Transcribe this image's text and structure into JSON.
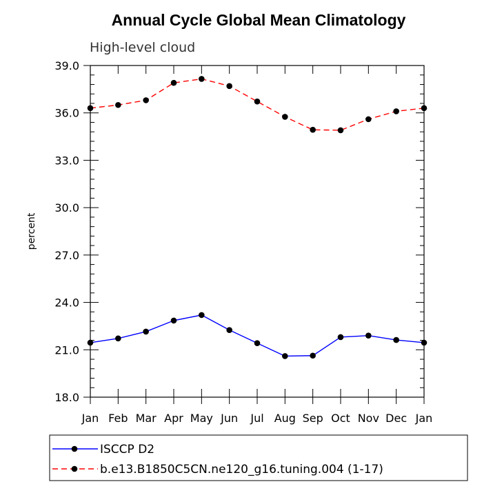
{
  "chart_data": {
    "type": "line",
    "title": "Annual Cycle Global Mean Climatology",
    "subtitle": "High-level cloud",
    "ylabel": "percent",
    "xlabel": "",
    "categories": [
      "Jan",
      "Feb",
      "Mar",
      "Apr",
      "May",
      "Jun",
      "Jul",
      "Aug",
      "Sep",
      "Oct",
      "Nov",
      "Dec",
      "Jan"
    ],
    "ylim": [
      18.0,
      39.0
    ],
    "yticks": [
      "18.0",
      "21.0",
      "24.0",
      "27.0",
      "30.0",
      "33.0",
      "36.0",
      "39.0"
    ],
    "grid": false,
    "legend_position": "bottom",
    "series": [
      {
        "name": "ISCCP D2",
        "color": "#0000ff",
        "line_style": "solid",
        "marker": "filled-circle",
        "values": [
          21.45,
          21.72,
          22.15,
          22.85,
          23.2,
          22.25,
          21.42,
          20.6,
          20.63,
          21.8,
          21.9,
          21.62,
          21.45
        ]
      },
      {
        "name": "b.e13.B1850C5CN.ne120_g16.tuning.004 (1-17)",
        "color": "#ff0000",
        "line_style": "dashed",
        "marker": "filled-circle",
        "values": [
          36.3,
          36.5,
          36.8,
          37.9,
          38.15,
          37.7,
          36.72,
          35.75,
          34.93,
          34.9,
          35.6,
          36.1,
          36.3
        ]
      }
    ]
  }
}
